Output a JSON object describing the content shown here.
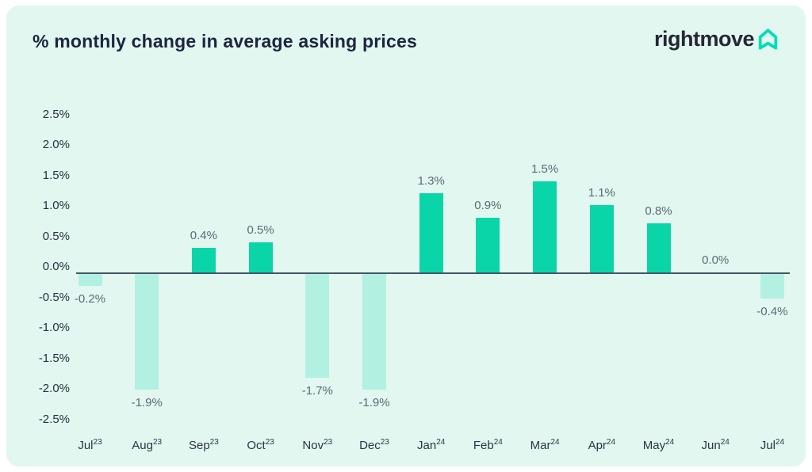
{
  "header": {
    "title": "% monthly change in average asking prices",
    "brand": "rightmove"
  },
  "chart_data": {
    "type": "bar",
    "title": "% monthly change in average asking prices",
    "categories": [
      {
        "month": "Jul",
        "year": "23"
      },
      {
        "month": "Aug",
        "year": "23"
      },
      {
        "month": "Sep",
        "year": "23"
      },
      {
        "month": "Oct",
        "year": "23"
      },
      {
        "month": "Nov",
        "year": "23"
      },
      {
        "month": "Dec",
        "year": "23"
      },
      {
        "month": "Jan",
        "year": "24"
      },
      {
        "month": "Feb",
        "year": "24"
      },
      {
        "month": "Mar",
        "year": "24"
      },
      {
        "month": "Apr",
        "year": "24"
      },
      {
        "month": "May",
        "year": "24"
      },
      {
        "month": "Jun",
        "year": "24"
      },
      {
        "month": "Jul",
        "year": "24"
      }
    ],
    "values": [
      -0.2,
      -1.9,
      0.4,
      0.5,
      -1.7,
      -1.9,
      1.3,
      0.9,
      1.5,
      1.1,
      0.8,
      0.0,
      -0.4
    ],
    "value_labels": [
      "-0.2%",
      "-1.9%",
      "0.4%",
      "0.5%",
      "-1.7%",
      "-1.9%",
      "1.3%",
      "0.9%",
      "1.5%",
      "1.1%",
      "0.8%",
      "0.0%",
      "-0.4%"
    ],
    "yticks": [
      2.5,
      2.0,
      1.5,
      1.0,
      0.5,
      0.0,
      -0.5,
      -1.0,
      -1.5,
      -2.0,
      -2.5
    ],
    "ytick_labels": [
      "2.5%",
      "2.0%",
      "1.5%",
      "1.0%",
      "0.5%",
      "0.0%",
      "-0.5%",
      "-1.0%",
      "-1.5%",
      "-2.0%",
      "-2.5%"
    ],
    "ylim": [
      -2.5,
      2.5
    ],
    "xlabel": "",
    "ylabel": "",
    "grid": false,
    "legend": null,
    "colors": {
      "positive_bar": "#0ad5a8",
      "negative_bar": "#b2f1e1",
      "axis_line": "#445569",
      "value_label": "#5d6a76",
      "tick_label": "#28313f",
      "card_background": "#e1f7ef",
      "title_text": "#1e2540",
      "brand_text": "#262637",
      "brand_icon": "#00deb6"
    }
  }
}
